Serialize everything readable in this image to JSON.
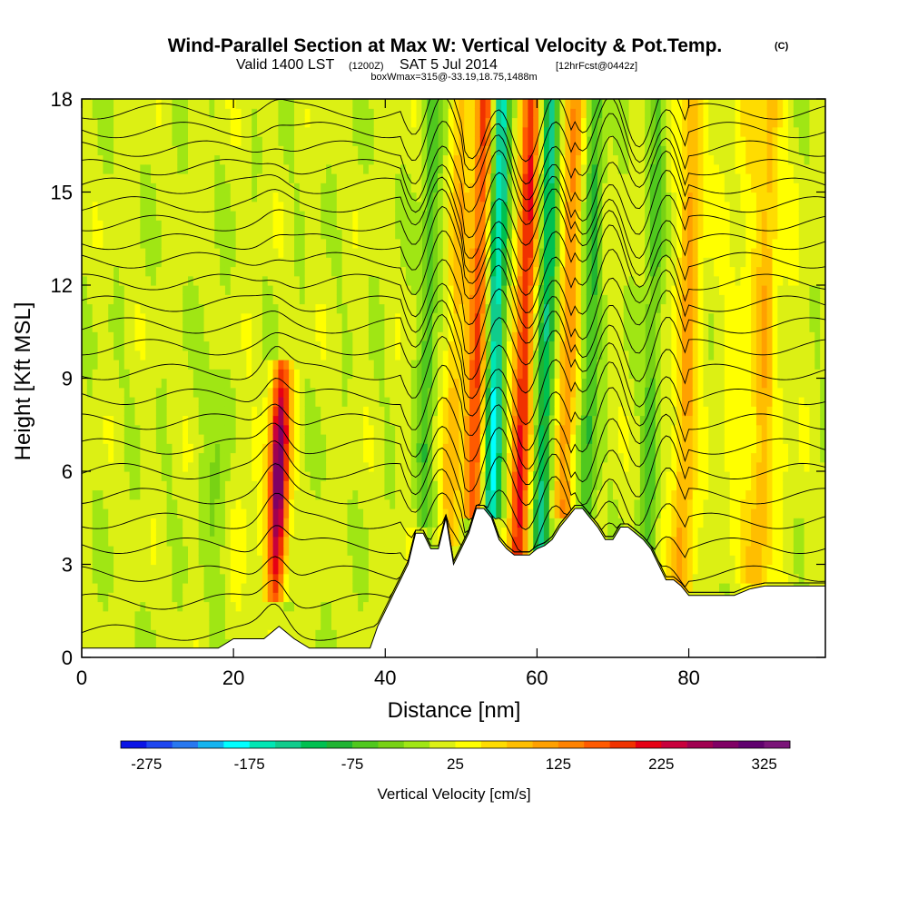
{
  "header": {
    "title": "Wind-Parallel Section at Max W: Vertical Velocity & Pot.Temp.",
    "copyright": "(C)",
    "valid_prefix": "Valid 1400 LST",
    "valid_utc": "(1200Z)",
    "valid_date": "SAT 5 Jul 2014",
    "forecast": "[12hrFcst@0442z]",
    "box_info": "boxWmax=315@-33.19,18.75,1488m"
  },
  "chart_data": {
    "type": "heatmap",
    "title": "Wind-Parallel Section at Max W: Vertical Velocity & Pot.Temp.",
    "xlabel": "Distance [nm]",
    "ylabel": "Height [Kft MSL]",
    "xlim": [
      0,
      98
    ],
    "ylim": [
      0,
      18
    ],
    "x_ticks": [
      "0",
      "20",
      "40",
      "60",
      "80"
    ],
    "x_tick_values": [
      0,
      20,
      40,
      60,
      80
    ],
    "y_ticks": [
      "0",
      "3",
      "6",
      "9",
      "12",
      "15",
      "18"
    ],
    "y_tick_values": [
      0,
      3,
      6,
      9,
      12,
      15,
      18
    ],
    "colorbar": {
      "title": "Vertical Velocity [cm/s]",
      "min": -300,
      "max": 350,
      "step": 25,
      "tick_labels": [
        "-275",
        "-175",
        "-75",
        "25",
        "125",
        "225",
        "325"
      ],
      "tick_values": [
        -275,
        -175,
        -75,
        25,
        125,
        225,
        325
      ],
      "colors": [
        "#0a14e6",
        "#1e46f0",
        "#2878f0",
        "#14b4f0",
        "#00ffff",
        "#00e6b4",
        "#10cc8c",
        "#00c050",
        "#20b432",
        "#50c81e",
        "#78d214",
        "#a0e614",
        "#dcf014",
        "#ffff00",
        "#ffdc00",
        "#ffbe00",
        "#ffa000",
        "#ff8200",
        "#ff5a00",
        "#f03200",
        "#e60014",
        "#c8003c",
        "#a00050",
        "#800064",
        "#60006e",
        "#7a1478"
      ]
    },
    "max_w_cm_s": 315,
    "terrain_kft": {
      "x": [
        0,
        2,
        4,
        6,
        8,
        10,
        12,
        14,
        16,
        18,
        20,
        22,
        24,
        26,
        28,
        30,
        32,
        34,
        36,
        38,
        39,
        40,
        41,
        42,
        43,
        44,
        45,
        46,
        47,
        48,
        49,
        50,
        51,
        52,
        53,
        54,
        55,
        56,
        57,
        58,
        59,
        60,
        61,
        62,
        63,
        64,
        65,
        66,
        67,
        68,
        69,
        70,
        71,
        72,
        73,
        74,
        75,
        76,
        77,
        78,
        79,
        80,
        82,
        84,
        86,
        88,
        90,
        92,
        94,
        96,
        98
      ],
      "height": [
        0.3,
        0.3,
        0.3,
        0.3,
        0.3,
        0.3,
        0.3,
        0.3,
        0.3,
        0.3,
        0.6,
        0.6,
        0.6,
        1.0,
        0.6,
        0.3,
        0.3,
        0.3,
        0.3,
        0.3,
        1.0,
        1.5,
        2.0,
        2.5,
        3.0,
        4.0,
        4.0,
        3.5,
        3.5,
        4.5,
        3.0,
        3.5,
        4.0,
        4.8,
        4.8,
        4.5,
        3.8,
        3.5,
        3.3,
        3.3,
        3.3,
        3.5,
        3.6,
        3.8,
        4.2,
        4.5,
        4.8,
        4.8,
        4.5,
        4.2,
        3.8,
        3.8,
        4.2,
        4.2,
        4.0,
        3.8,
        3.5,
        3.0,
        2.5,
        2.5,
        2.3,
        2.0,
        2.0,
        2.0,
        2.0,
        2.2,
        2.3,
        2.3,
        2.3,
        2.3,
        2.3
      ]
    },
    "updraft_cores": [
      {
        "x": 25.5,
        "base_kft": 2.0,
        "top_kft": 9.5,
        "w_cm_s": 315
      },
      {
        "x": 51.5,
        "base_kft": 4.8,
        "top_kft": 18,
        "w_cm_s": 175
      },
      {
        "x": 57.5,
        "base_kft": 3.5,
        "top_kft": 18,
        "w_cm_s": 200
      },
      {
        "x": 63.5,
        "base_kft": 4.8,
        "top_kft": 18,
        "w_cm_s": 125
      },
      {
        "x": 48.5,
        "base_kft": 4.0,
        "top_kft": 18,
        "w_cm_s": 90
      },
      {
        "x": 79,
        "base_kft": 2.5,
        "top_kft": 18,
        "w_cm_s": 90
      },
      {
        "x": 89,
        "base_kft": 2.3,
        "top_kft": 18,
        "w_cm_s": 60
      }
    ],
    "downdraft_cores": [
      {
        "x": 54,
        "base_kft": 4.8,
        "top_kft": 18,
        "w_cm_s": -175
      },
      {
        "x": 60.5,
        "base_kft": 3.5,
        "top_kft": 18,
        "w_cm_s": -125
      },
      {
        "x": 66.5,
        "base_kft": 4.8,
        "top_kft": 18,
        "w_cm_s": -75
      },
      {
        "x": 45,
        "base_kft": 4.5,
        "top_kft": 18,
        "w_cm_s": -60
      },
      {
        "x": 74.5,
        "base_kft": 3.0,
        "top_kft": 18,
        "w_cm_s": -60
      }
    ],
    "isentrope_base_heights_kft": [
      0.8,
      1.8,
      2.7,
      3.6,
      4.4,
      5.2,
      6.0,
      6.8,
      7.6,
      8.4,
      9.2,
      10.0,
      10.7,
      11.4,
      12.1,
      12.8,
      13.4,
      14.0,
      14.6,
      15.2,
      15.8,
      16.4,
      17.0,
      17.6
    ]
  }
}
